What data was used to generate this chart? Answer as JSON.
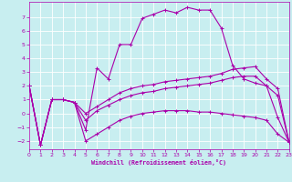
{
  "xlabel": "Windchill (Refroidissement éolien,°C)",
  "bg_color": "#c8eef0",
  "line_color": "#aa00aa",
  "grid_color": "#ffffff",
  "xlim": [
    0,
    23
  ],
  "ylim": [
    -2.6,
    8.1
  ],
  "xticks": [
    0,
    1,
    2,
    3,
    4,
    5,
    6,
    7,
    8,
    9,
    10,
    11,
    12,
    13,
    14,
    15,
    16,
    17,
    18,
    19,
    20,
    21,
    22,
    23
  ],
  "yticks": [
    -2,
    -1,
    0,
    1,
    2,
    3,
    4,
    5,
    6,
    7
  ],
  "curves": [
    {
      "x": [
        0,
        1,
        2,
        3,
        4,
        5,
        6,
        7,
        8,
        9,
        10,
        11,
        12,
        13,
        14,
        15,
        16,
        17,
        18,
        19,
        20,
        21,
        22,
        23
      ],
      "y": [
        2.0,
        -2.3,
        1.0,
        1.0,
        0.8,
        -1.2,
        3.3,
        2.5,
        5.0,
        5.0,
        6.9,
        7.2,
        7.5,
        7.3,
        7.7,
        7.5,
        7.5,
        6.2,
        3.5,
        2.5,
        2.2,
        2.0,
        -0.3,
        -2.1
      ]
    },
    {
      "x": [
        0,
        1,
        2,
        3,
        4,
        5,
        6,
        7,
        8,
        9,
        10,
        11,
        12,
        13,
        14,
        15,
        16,
        17,
        18,
        19,
        20,
        21,
        22,
        23
      ],
      "y": [
        2.0,
        -2.3,
        1.0,
        1.0,
        0.8,
        0.0,
        0.5,
        1.0,
        1.5,
        1.8,
        2.0,
        2.1,
        2.3,
        2.4,
        2.5,
        2.6,
        2.7,
        2.9,
        3.2,
        3.3,
        3.4,
        2.5,
        1.8,
        -2.1
      ]
    },
    {
      "x": [
        0,
        1,
        2,
        3,
        4,
        5,
        6,
        7,
        8,
        9,
        10,
        11,
        12,
        13,
        14,
        15,
        16,
        17,
        18,
        19,
        20,
        21,
        22,
        23
      ],
      "y": [
        2.0,
        -2.3,
        1.0,
        1.0,
        0.8,
        -0.5,
        0.2,
        0.6,
        1.0,
        1.3,
        1.5,
        1.6,
        1.8,
        1.9,
        2.0,
        2.1,
        2.2,
        2.4,
        2.6,
        2.7,
        2.7,
        2.0,
        1.3,
        -2.1
      ]
    },
    {
      "x": [
        0,
        1,
        2,
        3,
        4,
        5,
        6,
        7,
        8,
        9,
        10,
        11,
        12,
        13,
        14,
        15,
        16,
        17,
        18,
        19,
        20,
        21,
        22,
        23
      ],
      "y": [
        2.0,
        -2.3,
        1.0,
        1.0,
        0.8,
        -2.0,
        -1.5,
        -1.0,
        -0.5,
        -0.2,
        0.0,
        0.1,
        0.2,
        0.2,
        0.2,
        0.1,
        0.1,
        0.0,
        -0.1,
        -0.2,
        -0.3,
        -0.5,
        -1.5,
        -2.1
      ]
    }
  ]
}
